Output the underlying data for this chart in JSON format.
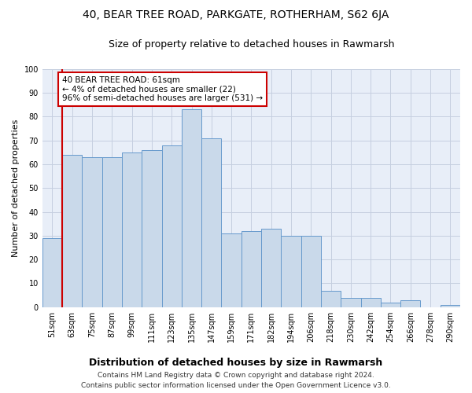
{
  "title": "40, BEAR TREE ROAD, PARKGATE, ROTHERHAM, S62 6JA",
  "subtitle": "Size of property relative to detached houses in Rawmarsh",
  "xlabel": "Distribution of detached houses by size in Rawmarsh",
  "ylabel": "Number of detached properties",
  "bar_values": [
    29,
    64,
    63,
    63,
    65,
    66,
    68,
    83,
    71,
    31,
    32,
    33,
    30,
    30,
    7,
    4,
    4,
    2,
    3,
    0,
    1
  ],
  "categories": [
    "51sqm",
    "63sqm",
    "75sqm",
    "87sqm",
    "99sqm",
    "111sqm",
    "123sqm",
    "135sqm",
    "147sqm",
    "159sqm",
    "171sqm",
    "182sqm",
    "194sqm",
    "206sqm",
    "218sqm",
    "230sqm",
    "242sqm",
    "254sqm",
    "266sqm",
    "278sqm",
    "290sqm"
  ],
  "bar_color": "#c9d9ea",
  "bar_edge_color": "#6699cc",
  "annotation_title": "40 BEAR TREE ROAD: 61sqm",
  "annotation_line1": "← 4% of detached houses are smaller (22)",
  "annotation_line2": "96% of semi-detached houses are larger (531) →",
  "annotation_box_color": "white",
  "annotation_box_edge": "#cc0000",
  "vline_color": "#cc0000",
  "ylim": [
    0,
    100
  ],
  "yticks": [
    0,
    10,
    20,
    30,
    40,
    50,
    60,
    70,
    80,
    90,
    100
  ],
  "grid_color": "#c5cfe0",
  "background_color": "#e8eef8",
  "footer1": "Contains HM Land Registry data © Crown copyright and database right 2024.",
  "footer2": "Contains public sector information licensed under the Open Government Licence v3.0.",
  "title_fontsize": 10,
  "subtitle_fontsize": 9,
  "annotation_fontsize": 7.5,
  "ylabel_fontsize": 8,
  "xlabel_fontsize": 9,
  "tick_fontsize": 7,
  "footer_fontsize": 6.5
}
